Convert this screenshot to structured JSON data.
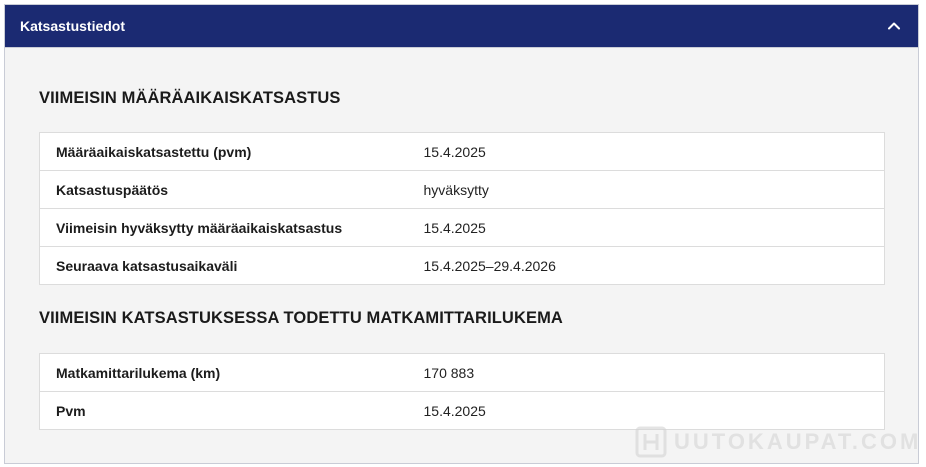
{
  "panel": {
    "title": "Katsastustiedot",
    "toggle_icon": "chevron-up-icon",
    "header_color": "#1b2a72"
  },
  "sections": [
    {
      "heading": "VIIMEISIN MÄÄRÄAIKAISKATSASTUS",
      "rows": [
        {
          "label": "Määräaikaiskatsastettu (pvm)",
          "value": "15.4.2025"
        },
        {
          "label": "Katsastuspäätös",
          "value": "hyväksytty"
        },
        {
          "label": "Viimeisin hyväksytty määräaikaiskatsastus",
          "value": "15.4.2025"
        },
        {
          "label": "Seuraava katsastusaikaväli",
          "value": "15.4.2025–29.4.2026"
        }
      ]
    },
    {
      "heading": "VIIMEISIN KATSASTUKSESSA TODETTU MATKAMITTARILUKEMA",
      "rows": [
        {
          "label": "Matkamittarilukema (km)",
          "value": "170 883"
        },
        {
          "label": "Pvm",
          "value": "15.4.2025"
        }
      ]
    }
  ],
  "watermark": {
    "text": "UUTOKAUPAT.COM",
    "icon": "huutokaupat-logo-icon"
  }
}
